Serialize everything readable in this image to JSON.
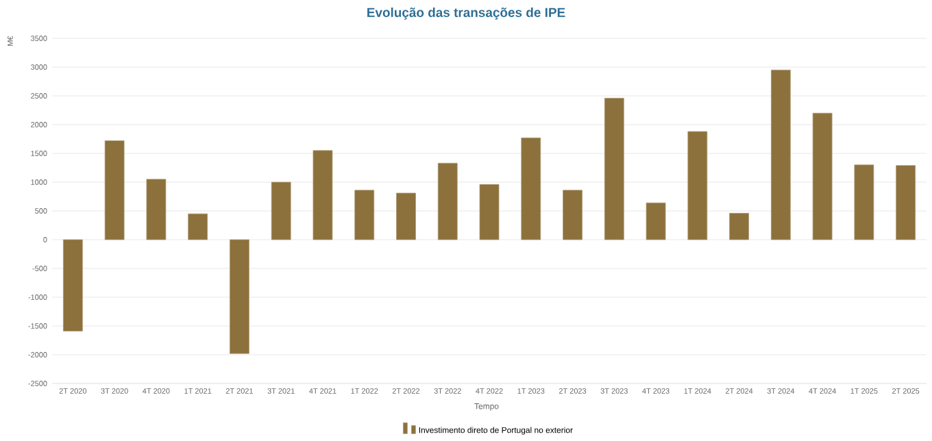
{
  "chart_data": {
    "type": "bar",
    "title": "Evolução das transações de IPE",
    "xlabel": "Tempo",
    "ylabel": "M€",
    "categories": [
      "2T 2020",
      "3T 2020",
      "4T 2020",
      "1T 2021",
      "2T 2021",
      "3T 2021",
      "4T 2021",
      "1T 2022",
      "2T 2022",
      "3T 2022",
      "4T 2022",
      "1T 2023",
      "2T 2023",
      "3T 2023",
      "4T 2023",
      "1T 2024",
      "2T 2024",
      "3T 2024",
      "4T 2024",
      "1T 2025",
      "2T 2025"
    ],
    "series": [
      {
        "name": "Investimento direto de Portugal no exterior",
        "color": "#8c713c",
        "values": [
          -1590,
          1720,
          1050,
          450,
          -1980,
          1000,
          1550,
          860,
          810,
          1330,
          960,
          1770,
          860,
          2460,
          640,
          1880,
          460,
          2950,
          2200,
          1300,
          1290
        ]
      }
    ],
    "ylim": [
      -2500,
      3500
    ],
    "yticks": [
      -2500,
      -2000,
      -1500,
      -1000,
      -500,
      0,
      500,
      1000,
      1500,
      2000,
      2500,
      3000,
      3500
    ],
    "grid": "y",
    "legend": "bottom"
  }
}
